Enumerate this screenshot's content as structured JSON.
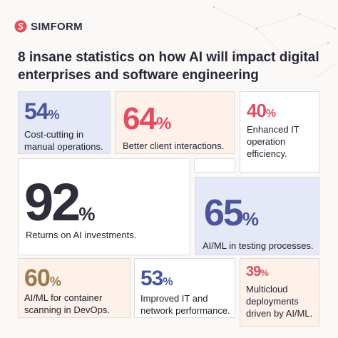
{
  "brand": {
    "name": "SIMFORM",
    "accent": "#e84b5a"
  },
  "headline": "8 insane statistics on how AI will impact digital enterprises and software engineering",
  "colors": {
    "blue_num": "#4a5699",
    "red_num": "#df4f61",
    "gold_num": "#9c7a4c",
    "dark_num": "#2e2e3a",
    "blue_card": "#e5e8f7",
    "peach_card": "#fdf1ea",
    "white_card": "#ffffff"
  },
  "stats": [
    {
      "value": "54",
      "unit": "%",
      "label": "Cost-cutting in manual operations."
    },
    {
      "value": "64",
      "unit": "%",
      "label": "Better client interactions."
    },
    {
      "value": "40",
      "unit": "%",
      "label": "Enhanced IT operation efficiency."
    },
    {
      "value": "92",
      "unit": "%",
      "label": "Returns on AI investments."
    },
    {
      "value": "65",
      "unit": "%",
      "label": "AI/ML in testing processes."
    },
    {
      "value": "60",
      "unit": "%",
      "label": "AI/ML for container scanning in DevOps."
    },
    {
      "value": "53",
      "unit": "%",
      "label": "Improved IT and network performance."
    },
    {
      "value": "39",
      "unit": "%",
      "label": "Multicloud deployments driven by AI/ML."
    }
  ]
}
